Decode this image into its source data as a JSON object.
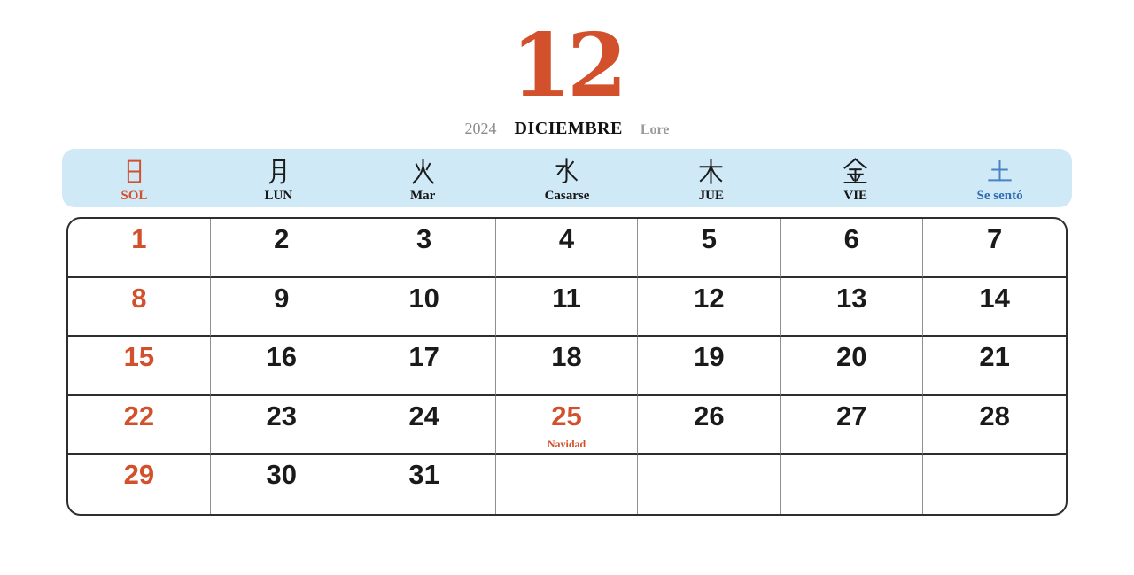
{
  "header": {
    "month_number": "12",
    "year": "2024",
    "month_name": "DICIEMBRE",
    "note": "Lore"
  },
  "colors": {
    "accent_red": "#d2502c",
    "accent_blue": "#2e6cb4",
    "accent_blue_light": "#4b83c0",
    "band_bg": "#cfe9f7"
  },
  "weekdays": [
    {
      "kanji": "日",
      "label": "SOL",
      "tone": "red"
    },
    {
      "kanji": "月",
      "label": "LUN",
      "tone": "black"
    },
    {
      "kanji": "火",
      "label": "Mar",
      "tone": "black"
    },
    {
      "kanji": "水",
      "label": "Casarse",
      "tone": "black"
    },
    {
      "kanji": "木",
      "label": "JUE",
      "tone": "black"
    },
    {
      "kanji": "金",
      "label": "VIE",
      "tone": "black"
    },
    {
      "kanji": "土",
      "label": "Se sentó",
      "tone": "blue"
    }
  ],
  "calendar": {
    "weeks": [
      [
        {
          "day": "1",
          "tone": "red"
        },
        {
          "day": "2"
        },
        {
          "day": "3"
        },
        {
          "day": "4"
        },
        {
          "day": "5"
        },
        {
          "day": "6"
        },
        {
          "day": "7"
        }
      ],
      [
        {
          "day": "8",
          "tone": "red"
        },
        {
          "day": "9"
        },
        {
          "day": "10"
        },
        {
          "day": "11"
        },
        {
          "day": "12"
        },
        {
          "day": "13"
        },
        {
          "day": "14"
        }
      ],
      [
        {
          "day": "15",
          "tone": "red"
        },
        {
          "day": "16"
        },
        {
          "day": "17"
        },
        {
          "day": "18"
        },
        {
          "day": "19"
        },
        {
          "day": "20"
        },
        {
          "day": "21"
        }
      ],
      [
        {
          "day": "22",
          "tone": "red"
        },
        {
          "day": "23"
        },
        {
          "day": "24"
        },
        {
          "day": "25",
          "tone": "red",
          "note": "Navidad"
        },
        {
          "day": "26"
        },
        {
          "day": "27"
        },
        {
          "day": "28"
        }
      ],
      [
        {
          "day": "29",
          "tone": "red"
        },
        {
          "day": "30"
        },
        {
          "day": "31"
        },
        {
          "day": ""
        },
        {
          "day": ""
        },
        {
          "day": ""
        },
        {
          "day": ""
        }
      ]
    ]
  }
}
